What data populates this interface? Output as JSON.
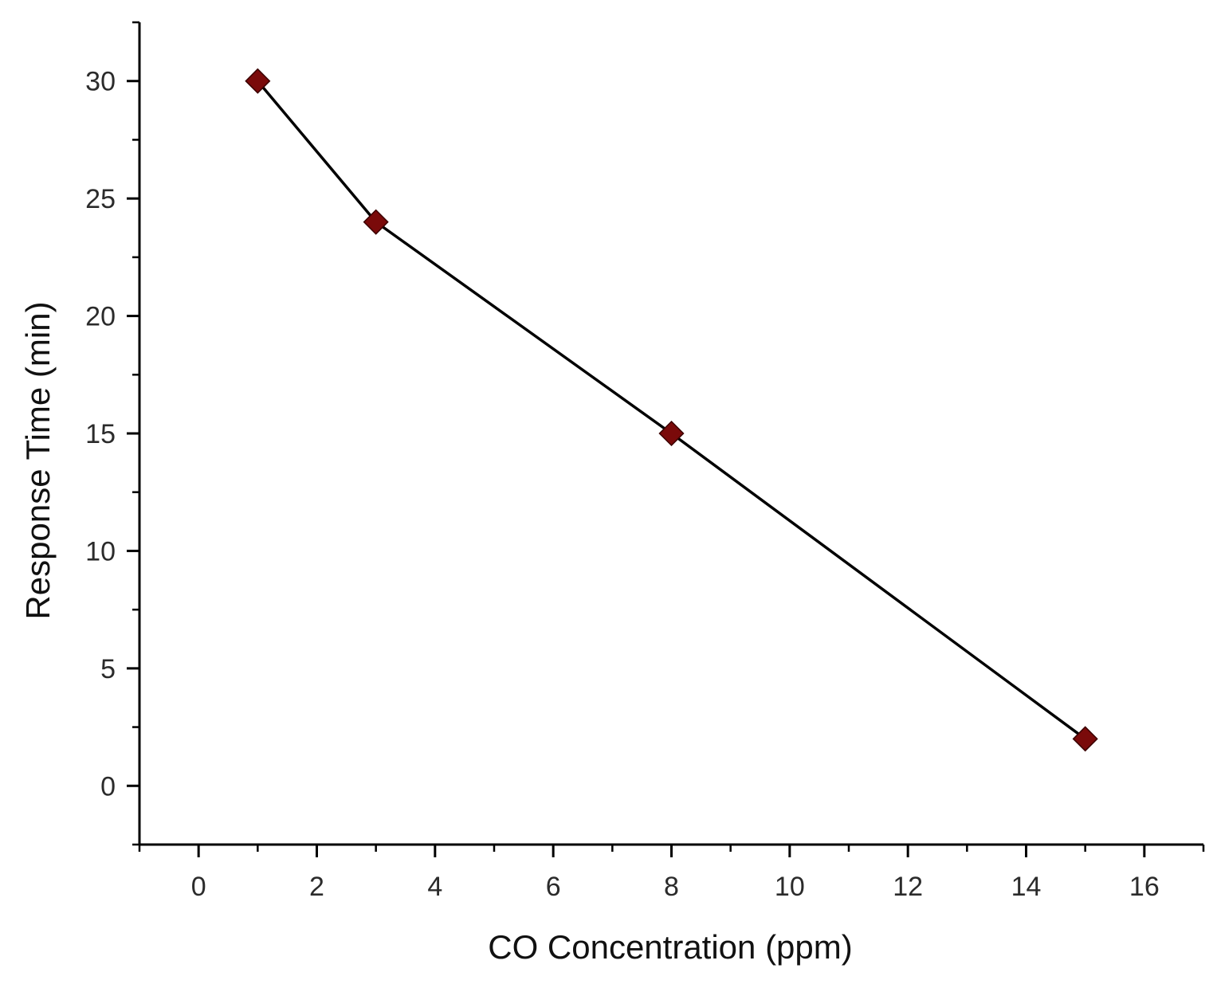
{
  "chart_data": {
    "type": "line",
    "title": "",
    "xlabel": "CO Concentration (ppm)",
    "ylabel": "Response Time (min)",
    "xlim": [
      -1,
      17
    ],
    "ylim": [
      -2.5,
      32.5
    ],
    "x_ticks": [
      0,
      2,
      4,
      6,
      8,
      10,
      12,
      14,
      16
    ],
    "y_ticks": [
      0,
      5,
      10,
      15,
      20,
      25,
      30
    ],
    "x_minor_step": 1,
    "y_minor_step": 2.5,
    "grid": false,
    "legend": false,
    "series": [
      {
        "name": "Response Time",
        "x": [
          1,
          3,
          8,
          15
        ],
        "values": [
          30,
          24,
          15,
          2
        ],
        "marker": "diamond",
        "marker_color": "#7a0a0a",
        "line_color": "#000000"
      }
    ]
  }
}
